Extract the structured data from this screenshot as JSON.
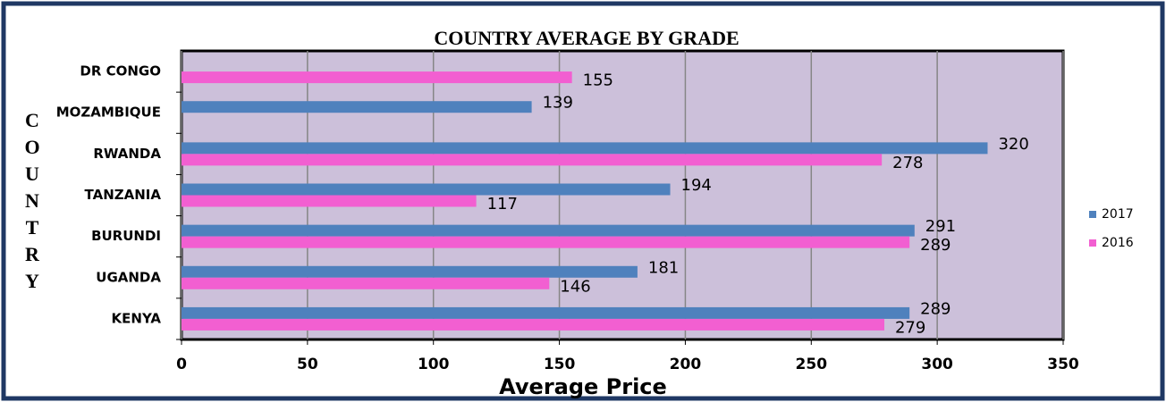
{
  "chart_data": {
    "type": "bar",
    "orientation": "horizontal",
    "title": "COUNTRY AVERAGE BY GRADE",
    "x_label": "Average Price",
    "y_label": "COUNTRY",
    "categories": [
      "KENYA",
      "UGANDA",
      "BURUNDI",
      "TANZANIA",
      "RWANDA",
      "MOZAMBIQUE",
      "DR CONGO"
    ],
    "series": [
      {
        "name": "2017",
        "color": "#4f81bd",
        "values": [
          289,
          181,
          291,
          194,
          320,
          139,
          null
        ]
      },
      {
        "name": "2016",
        "color": "#f25fd1",
        "values": [
          279,
          146,
          289,
          117,
          278,
          null,
          155
        ]
      }
    ],
    "xlim": [
      0,
      350
    ],
    "xticks": [
      0,
      50,
      100,
      150,
      200,
      250,
      300,
      350
    ],
    "grid": true,
    "legend": "right"
  }
}
